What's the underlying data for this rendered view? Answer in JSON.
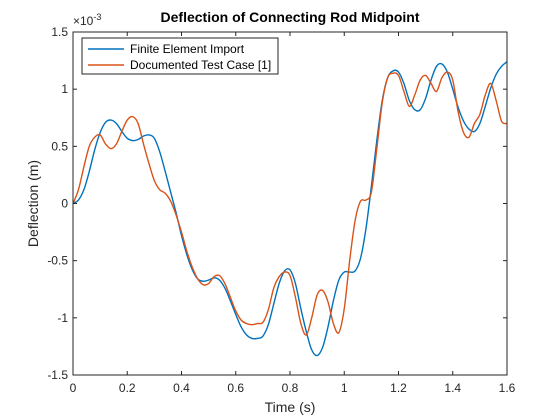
{
  "chart_data": {
    "type": "line",
    "title": "Deflection of Connecting Rod Midpoint",
    "xlabel": "Time (s)",
    "ylabel": "Deflection (m)",
    "y_exponent_prefix": "×10",
    "y_exponent_power": "-3",
    "xlim": [
      0,
      1.6
    ],
    "ylim": [
      -1.5,
      1.5
    ],
    "x_ticks": [
      "0",
      "0.2",
      "0.4",
      "0.6",
      "0.8",
      "1",
      "1.2",
      "1.4",
      "1.6"
    ],
    "y_ticks": [
      "-1.5",
      "-1",
      "-0.5",
      "0",
      "0.5",
      "1",
      "1.5"
    ],
    "grid": false,
    "legend_position": "top-left",
    "series": [
      {
        "name": "Finite Element Import",
        "color": "#0072BD",
        "x": [
          0,
          0.02,
          0.04,
          0.06,
          0.08,
          0.1,
          0.12,
          0.14,
          0.16,
          0.18,
          0.2,
          0.22,
          0.24,
          0.26,
          0.28,
          0.3,
          0.32,
          0.34,
          0.36,
          0.38,
          0.4,
          0.42,
          0.44,
          0.46,
          0.48,
          0.5,
          0.52,
          0.54,
          0.56,
          0.58,
          0.6,
          0.62,
          0.64,
          0.66,
          0.68,
          0.7,
          0.72,
          0.74,
          0.76,
          0.78,
          0.8,
          0.82,
          0.84,
          0.86,
          0.88,
          0.9,
          0.92,
          0.94,
          0.96,
          0.98,
          1.0,
          1.02,
          1.04,
          1.06,
          1.08,
          1.1,
          1.12,
          1.14,
          1.16,
          1.18,
          1.2,
          1.22,
          1.24,
          1.26,
          1.28,
          1.3,
          1.32,
          1.34,
          1.36,
          1.38,
          1.4,
          1.42,
          1.44,
          1.46,
          1.48,
          1.5,
          1.52,
          1.54,
          1.56,
          1.58,
          1.6
        ],
        "y": [
          0.0,
          0.03,
          0.12,
          0.28,
          0.47,
          0.62,
          0.71,
          0.73,
          0.7,
          0.63,
          0.57,
          0.55,
          0.56,
          0.59,
          0.6,
          0.57,
          0.45,
          0.28,
          0.1,
          -0.08,
          -0.28,
          -0.45,
          -0.58,
          -0.66,
          -0.68,
          -0.67,
          -0.65,
          -0.67,
          -0.74,
          -0.85,
          -0.97,
          -1.08,
          -1.15,
          -1.18,
          -1.18,
          -1.16,
          -1.06,
          -0.88,
          -0.7,
          -0.59,
          -0.58,
          -0.7,
          -0.92,
          -1.12,
          -1.28,
          -1.33,
          -1.26,
          -1.08,
          -0.85,
          -0.67,
          -0.6,
          -0.6,
          -0.59,
          -0.48,
          -0.22,
          0.15,
          0.55,
          0.9,
          1.1,
          1.16,
          1.15,
          1.05,
          0.9,
          0.82,
          0.82,
          0.92,
          1.08,
          1.2,
          1.22,
          1.15,
          1.0,
          0.84,
          0.72,
          0.65,
          0.63,
          0.7,
          0.85,
          1.01,
          1.13,
          1.2,
          1.24
        ]
      },
      {
        "name": "Documented Test Case [1]",
        "color": "#D95319",
        "x": [
          0,
          0.02,
          0.04,
          0.06,
          0.08,
          0.1,
          0.12,
          0.14,
          0.16,
          0.18,
          0.2,
          0.22,
          0.24,
          0.26,
          0.28,
          0.3,
          0.32,
          0.34,
          0.36,
          0.38,
          0.4,
          0.42,
          0.44,
          0.46,
          0.48,
          0.5,
          0.52,
          0.54,
          0.56,
          0.58,
          0.6,
          0.62,
          0.64,
          0.66,
          0.68,
          0.7,
          0.72,
          0.74,
          0.76,
          0.78,
          0.8,
          0.82,
          0.84,
          0.86,
          0.88,
          0.9,
          0.92,
          0.94,
          0.96,
          0.98,
          1.0,
          1.02,
          1.04,
          1.06,
          1.08,
          1.1,
          1.12,
          1.14,
          1.16,
          1.18,
          1.2,
          1.22,
          1.24,
          1.26,
          1.28,
          1.3,
          1.32,
          1.34,
          1.36,
          1.38,
          1.4,
          1.42,
          1.44,
          1.46,
          1.48,
          1.5,
          1.52,
          1.54,
          1.56,
          1.58,
          1.6
        ],
        "y": [
          0.0,
          0.12,
          0.32,
          0.5,
          0.58,
          0.6,
          0.52,
          0.48,
          0.52,
          0.63,
          0.73,
          0.76,
          0.7,
          0.52,
          0.35,
          0.2,
          0.12,
          0.09,
          0.02,
          -0.1,
          -0.25,
          -0.42,
          -0.56,
          -0.66,
          -0.71,
          -0.7,
          -0.64,
          -0.63,
          -0.7,
          -0.82,
          -0.94,
          -1.02,
          -1.05,
          -1.06,
          -1.05,
          -1.04,
          -0.93,
          -0.74,
          -0.64,
          -0.6,
          -0.63,
          -0.82,
          -1.05,
          -1.15,
          -1.0,
          -0.8,
          -0.76,
          -0.86,
          -1.05,
          -1.13,
          -0.92,
          -0.5,
          -0.15,
          0.02,
          0.03,
          0.1,
          0.48,
          0.88,
          1.1,
          1.14,
          1.12,
          0.98,
          0.85,
          0.95,
          1.08,
          1.12,
          1.05,
          0.98,
          1.1,
          1.15,
          1.08,
          0.8,
          0.62,
          0.58,
          0.7,
          0.78,
          0.95,
          1.05,
          0.9,
          0.72,
          0.7
        ]
      }
    ]
  }
}
